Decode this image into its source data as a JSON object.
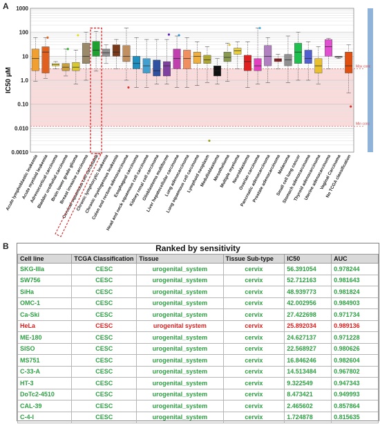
{
  "panels": {
    "a": "A",
    "b": "B"
  },
  "chart_data": {
    "type": "box",
    "ylabel": "IC50 µM",
    "yscale": "log",
    "ylim": [
      0.001,
      1000
    ],
    "yticks": [
      "1000",
      "100",
      "10",
      "1.0",
      "0.10",
      "0.010",
      "0.0010"
    ],
    "max_conc": {
      "label": "Max conc",
      "value": 3
    },
    "min_conc": {
      "label": "Min conc",
      "value": 0.012
    },
    "highlighted_category": "Cervical squamous cell carcinoma",
    "categories": [
      "Acute lymphoblastic leukemia",
      "Acute myeloid leukemia",
      "Adrenocortical carcinoma",
      "Bladder urothelial carcinoma",
      "Brain lower grade glioma",
      "Breast invasive carcinoma",
      "Cervical squamous cell carcinoma",
      "Chronic lymphocytic leukemia",
      "Chronic myelogenous leukemia",
      "Colon and rectum adenocarcinoma",
      "Esophageal carcinoma",
      "Head and neck squamous cell carcinoma",
      "Kidney renal cell carcinoma",
      "Glioblastoma multiforme",
      "Liver hepatocellular carcinoma",
      "Lung adenocarcinoma",
      "Lung squamous cell carcinoma",
      "Lymphoid neoplasm",
      "Medulloblastoma",
      "Mesothelioma",
      "Multiple myeloma",
      "Neuroblastoma",
      "Ovarian carcinoma",
      "Pancreatic adenocarcinoma",
      "Prostate adenocarcinoma",
      "Melanoma",
      "Small cell lung cancer",
      "Stomach adenocarcinoma",
      "Thyroid adenocarcinoma",
      "Uterine adenocarcinoma",
      "Vaginal Carcinoma",
      "No TCGA classification"
    ],
    "boxes": [
      {
        "color": "#f0a030",
        "min": 0.9,
        "q1": 2.5,
        "median": 8,
        "q3": 20,
        "max": 60
      },
      {
        "color": "#e06020",
        "min": 1.2,
        "q1": 2.0,
        "median": 15,
        "q3": 25,
        "max": 60
      },
      {
        "color": "#f7e04a",
        "min": 3,
        "q1": 4,
        "median": 4.5,
        "q3": 5,
        "max": 6
      },
      {
        "color": "#c8a040",
        "min": 1.5,
        "q1": 2.5,
        "median": 3.5,
        "q3": 5,
        "max": 20
      },
      {
        "color": "#d8c830",
        "min": 0.7,
        "q1": 2.5,
        "median": 3.5,
        "q3": 5.5,
        "max": 18
      },
      {
        "color": "#9a8a6a",
        "min": 1.0,
        "q1": 5,
        "median": 10,
        "q3": 35,
        "max": 100
      },
      {
        "color": "#20a030",
        "min": 2.4,
        "q1": 10,
        "median": 18,
        "q3": 42,
        "max": 110
      },
      {
        "color": "#909090",
        "min": 5,
        "q1": 10,
        "median": 14,
        "q3": 20,
        "max": 30
      },
      {
        "color": "#7a3a1a",
        "min": 3,
        "q1": 10,
        "median": 15,
        "q3": 30,
        "max": 50
      },
      {
        "color": "#c09060",
        "min": 1.0,
        "q1": 6,
        "median": 10,
        "q3": 28,
        "max": 150
      },
      {
        "color": "#2090c0",
        "min": 0.5,
        "q1": 3,
        "median": 5,
        "q3": 10,
        "max": 60
      },
      {
        "color": "#40a0d0",
        "min": 0.5,
        "q1": 2,
        "median": 4,
        "q3": 8,
        "max": 50
      },
      {
        "color": "#3050a0",
        "min": 0.7,
        "q1": 1.5,
        "median": 2.5,
        "q3": 7,
        "max": 50
      },
      {
        "color": "#8040a0",
        "min": 0.7,
        "q1": 1.5,
        "median": 4,
        "q3": 6,
        "max": 50
      },
      {
        "color": "#c040b0",
        "min": 0.5,
        "q1": 3,
        "median": 8,
        "q3": 20,
        "max": 70
      },
      {
        "color": "#f09060",
        "min": 0.5,
        "q1": 3,
        "median": 8,
        "q3": 18,
        "max": 60
      },
      {
        "color": "#f0b040",
        "min": 0.6,
        "q1": 5,
        "median": 10,
        "q3": 15,
        "max": 40
      },
      {
        "color": "#b0a830",
        "min": 0.8,
        "q1": 5,
        "median": 7,
        "q3": 11,
        "max": 25
      },
      {
        "color": "#111111",
        "min": 0.7,
        "q1": 1.5,
        "median": 2.5,
        "q3": 4,
        "max": 8
      },
      {
        "color": "#8a9a50",
        "min": 0.9,
        "q1": 6,
        "median": 9,
        "q3": 15,
        "max": 35
      },
      {
        "color": "#e8d040",
        "min": 3,
        "q1": 12,
        "median": 17,
        "q3": 22,
        "max": 40
      },
      {
        "color": "#e02020",
        "min": 0.5,
        "q1": 2.5,
        "median": 6,
        "q3": 11,
        "max": 40
      },
      {
        "color": "#e040c0",
        "min": 0.7,
        "q1": 2.5,
        "median": 4,
        "q3": 8,
        "max": 150
      },
      {
        "color": "#b080c0",
        "min": 0.8,
        "q1": 4,
        "median": 10,
        "q3": 28,
        "max": 60
      },
      {
        "color": "#a02020",
        "min": 3,
        "q1": 6,
        "median": 7,
        "q3": 8,
        "max": 12
      },
      {
        "color": "#909090",
        "min": 0.8,
        "q1": 4,
        "median": 7,
        "q3": 12,
        "max": 70
      },
      {
        "color": "#20c050",
        "min": 1.0,
        "q1": 5,
        "median": 15,
        "q3": 35,
        "max": 100
      },
      {
        "color": "#5060d0",
        "min": 1.0,
        "q1": 5,
        "median": 8,
        "q3": 18,
        "max": 40
      },
      {
        "color": "#e8c030",
        "min": 0.7,
        "q1": 2,
        "median": 4,
        "q3": 8,
        "max": 25
      },
      {
        "color": "#e050d0",
        "min": 3,
        "q1": 10,
        "median": 25,
        "q3": 50,
        "max": 55
      },
      {
        "color": "#b0b0b0",
        "min": 8,
        "q1": 9,
        "median": 9.5,
        "q3": 10,
        "max": 10
      },
      {
        "color": "#e05010",
        "min": 0.3,
        "q1": 2,
        "median": 4,
        "q3": 15,
        "max": 30
      }
    ],
    "outliers": [
      {
        "cat": 1,
        "value": 60,
        "color": "#e06020"
      },
      {
        "cat": 3,
        "value": 20,
        "color": "#30b030"
      },
      {
        "cat": 4,
        "value": 75,
        "color": "#e0e020"
      },
      {
        "cat": 9,
        "value": 0.5,
        "color": "#e03030"
      },
      {
        "cat": 13,
        "value": 80,
        "color": "#6020c0"
      },
      {
        "cat": 14,
        "value": 75,
        "color": "#3090d0"
      },
      {
        "cat": 17,
        "value": 0.003,
        "color": "#a0a020"
      },
      {
        "cat": 19,
        "value": 30,
        "color": "#e0c030"
      },
      {
        "cat": 22,
        "value": 150,
        "color": "#40b0e0"
      },
      {
        "cat": 31,
        "value": 0.08,
        "color": "#e03030"
      }
    ]
  },
  "table": {
    "title": "Ranked by sensitivity",
    "columns": [
      "Cell line",
      "TCGA Classification",
      "Tissue",
      "Tissue Sub-type",
      "IC50",
      "AUC"
    ],
    "rows": [
      {
        "cell": "SKG-IIIa",
        "tcga": "CESC",
        "tissue": "urogenital_system",
        "sub": "cervix",
        "ic50": "56.391054",
        "auc": "0.978244"
      },
      {
        "cell": "SW756",
        "tcga": "CESC",
        "tissue": "urogenital_system",
        "sub": "cervix",
        "ic50": "52.712163",
        "auc": "0.981643"
      },
      {
        "cell": "SiHa",
        "tcga": "CESC",
        "tissue": "urogenital_system",
        "sub": "cervix",
        "ic50": "48.939773",
        "auc": "0.981824"
      },
      {
        "cell": "OMC-1",
        "tcga": "CESC",
        "tissue": "urogenital_system",
        "sub": "cervix",
        "ic50": "42.002956",
        "auc": "0.984903"
      },
      {
        "cell": "Ca-Ski",
        "tcga": "CESC",
        "tissue": "urogenital_system",
        "sub": "cervix",
        "ic50": "27.422698",
        "auc": "0.971734"
      },
      {
        "cell": "HeLa",
        "tcga": "CESC",
        "tissue": "urogenital system",
        "sub": "cervix",
        "ic50": "25.892034",
        "auc": "0.989136",
        "highlight": true
      },
      {
        "cell": "ME-180",
        "tcga": "CESC",
        "tissue": "urogenital_system",
        "sub": "cervix",
        "ic50": "24.627137",
        "auc": "0.971228"
      },
      {
        "cell": "SISO",
        "tcga": "CESC",
        "tissue": "urogenital_system",
        "sub": "cervix",
        "ic50": "22.568927",
        "auc": "0.980626"
      },
      {
        "cell": "MS751",
        "tcga": "CESC",
        "tissue": "urogenital_system",
        "sub": "cervix",
        "ic50": "16.846246",
        "auc": "0.982604"
      },
      {
        "cell": "C-33-A",
        "tcga": "CESC",
        "tissue": "urogenital_system",
        "sub": "cervix",
        "ic50": "14.513484",
        "auc": "0.967802"
      },
      {
        "cell": "HT-3",
        "tcga": "CESC",
        "tissue": "urogenital_system",
        "sub": "cervix",
        "ic50": "9.322549",
        "auc": "0.947343"
      },
      {
        "cell": "DoTc2-4510",
        "tcga": "CESC",
        "tissue": "urogenital_system",
        "sub": "cervix",
        "ic50": "8.473421",
        "auc": "0.949993"
      },
      {
        "cell": "CAL-39",
        "tcga": "CESC",
        "tissue": "urogenital_system",
        "sub": "cervix",
        "ic50": "2.465602",
        "auc": "0.857864"
      },
      {
        "cell": "C-4-I",
        "tcga": "CESC",
        "tissue": "urogenital_system",
        "sub": "cervix",
        "ic50": "1.724878",
        "auc": "0.815635"
      }
    ]
  }
}
